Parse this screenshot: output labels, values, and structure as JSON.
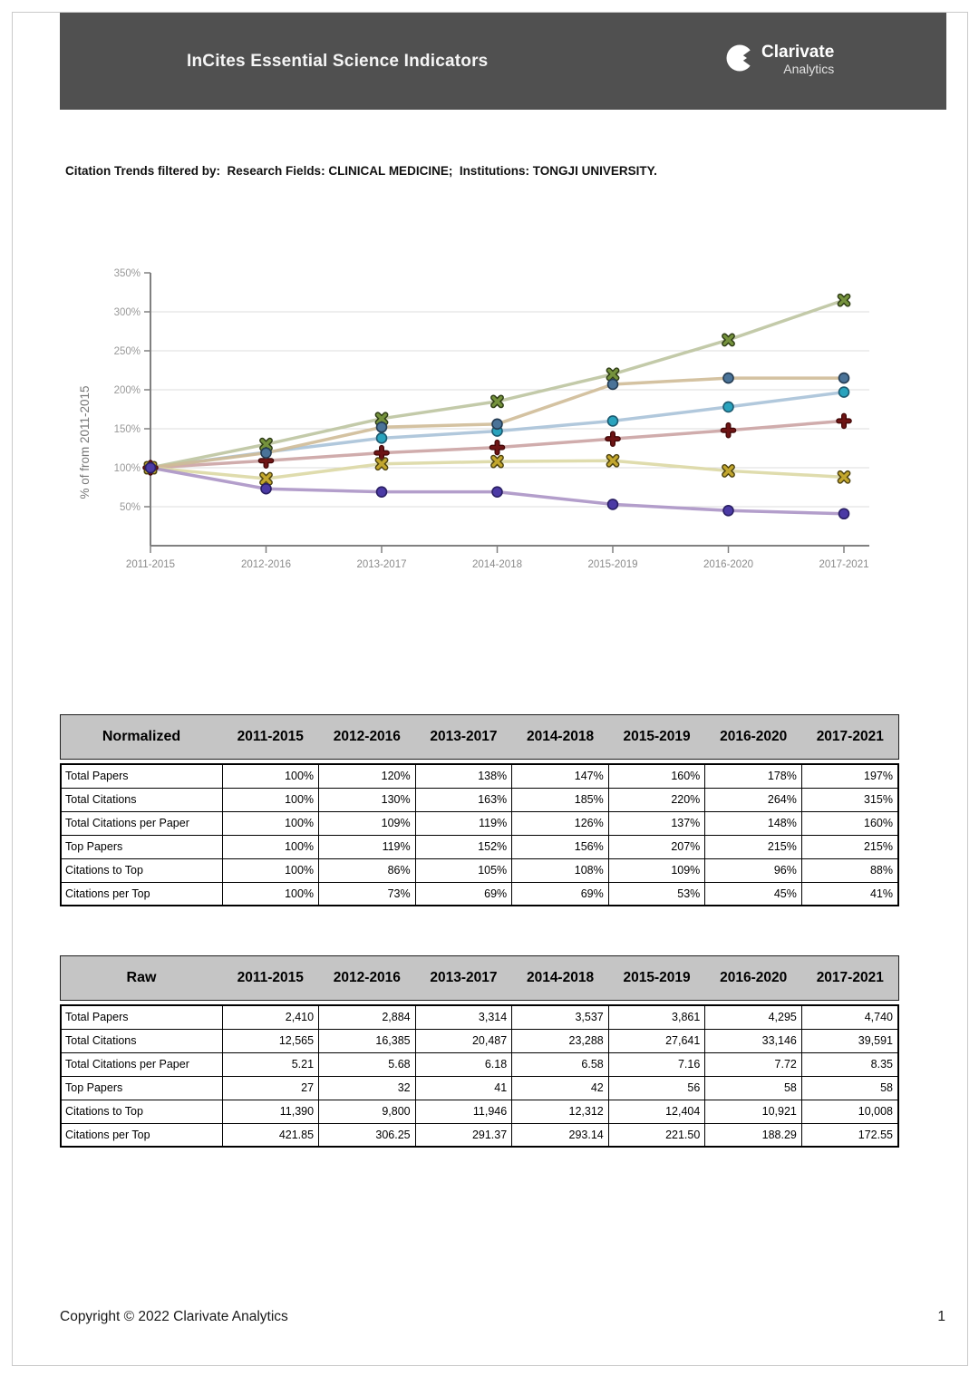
{
  "header": {
    "title": "InCites Essential Science Indicators",
    "brand": {
      "name": "Clarivate",
      "sub": "Analytics"
    }
  },
  "filter_line": "Citation Trends filtered by:  Research Fields: CLINICAL MEDICINE;  Institutions: TONGJI UNIVERSITY.",
  "chart_data": {
    "type": "line",
    "title": "",
    "xlabel": "",
    "ylabel": "% of from 2011-2015",
    "ylim": [
      0,
      350
    ],
    "ytick_step": 50,
    "ytick_suffix": "%",
    "grid": true,
    "legend": "none",
    "categories": [
      "2011-2015",
      "2012-2016",
      "2013-2017",
      "2014-2018",
      "2015-2019",
      "2016-2020",
      "2017-2021"
    ],
    "series": [
      {
        "name": "Total Papers",
        "values": [
          100,
          120,
          138,
          147,
          160,
          178,
          197
        ],
        "line_color": "#a9c2d8",
        "marker": "circle",
        "marker_color": "#2aa3bd",
        "marker_edge": "#1d5a70"
      },
      {
        "name": "Total Citations",
        "values": [
          100,
          130,
          163,
          185,
          220,
          264,
          315
        ],
        "line_color": "#bcc4a0",
        "marker": "x",
        "marker_color": "#75923d",
        "marker_edge": "#2f3d16"
      },
      {
        "name": "Total Citations per Paper",
        "values": [
          100,
          109,
          119,
          126,
          137,
          148,
          160
        ],
        "line_color": "#cba3a3",
        "marker": "plus",
        "marker_color": "#6d1414",
        "marker_edge": "#420808"
      },
      {
        "name": "Top Papers",
        "values": [
          100,
          119,
          152,
          156,
          207,
          215,
          215
        ],
        "line_color": "#cfbb97",
        "marker": "circle",
        "marker_color": "#4a7398",
        "marker_edge": "#253c52"
      },
      {
        "name": "Citations to Top",
        "values": [
          100,
          86,
          105,
          108,
          109,
          96,
          88
        ],
        "line_color": "#dcd8a4",
        "marker": "x",
        "marker_color": "#c2a62e",
        "marker_edge": "#4f4410"
      },
      {
        "name": "Citations per Top",
        "values": [
          100,
          73,
          69,
          69,
          53,
          45,
          41
        ],
        "line_color": "#ab93c5",
        "marker": "circle",
        "marker_color": "#4b3aa5",
        "marker_edge": "#2a1f63"
      }
    ]
  },
  "tables": {
    "normalized": {
      "title": "Normalized",
      "columns": [
        "2011-2015",
        "2012-2016",
        "2013-2017",
        "2014-2018",
        "2015-2019",
        "2016-2020",
        "2017-2021"
      ],
      "rows": [
        {
          "label": "Total Papers",
          "values": [
            "100%",
            "120%",
            "138%",
            "147%",
            "160%",
            "178%",
            "197%"
          ]
        },
        {
          "label": "Total Citations",
          "values": [
            "100%",
            "130%",
            "163%",
            "185%",
            "220%",
            "264%",
            "315%"
          ]
        },
        {
          "label": "Total Citations per Paper",
          "values": [
            "100%",
            "109%",
            "119%",
            "126%",
            "137%",
            "148%",
            "160%"
          ]
        },
        {
          "label": "Top Papers",
          "values": [
            "100%",
            "119%",
            "152%",
            "156%",
            "207%",
            "215%",
            "215%"
          ]
        },
        {
          "label": "Citations to Top",
          "values": [
            "100%",
            "86%",
            "105%",
            "108%",
            "109%",
            "96%",
            "88%"
          ]
        },
        {
          "label": "Citations per Top",
          "values": [
            "100%",
            "73%",
            "69%",
            "69%",
            "53%",
            "45%",
            "41%"
          ]
        }
      ]
    },
    "raw": {
      "title": "Raw",
      "columns": [
        "2011-2015",
        "2012-2016",
        "2013-2017",
        "2014-2018",
        "2015-2019",
        "2016-2020",
        "2017-2021"
      ],
      "rows": [
        {
          "label": "Total Papers",
          "values": [
            "2,410",
            "2,884",
            "3,314",
            "3,537",
            "3,861",
            "4,295",
            "4,740"
          ]
        },
        {
          "label": "Total Citations",
          "values": [
            "12,565",
            "16,385",
            "20,487",
            "23,288",
            "27,641",
            "33,146",
            "39,591"
          ]
        },
        {
          "label": "Total Citations per Paper",
          "values": [
            "5.21",
            "5.68",
            "6.18",
            "6.58",
            "7.16",
            "7.72",
            "8.35"
          ]
        },
        {
          "label": "Top Papers",
          "values": [
            "27",
            "32",
            "41",
            "42",
            "56",
            "58",
            "58"
          ]
        },
        {
          "label": "Citations to Top",
          "values": [
            "11,390",
            "9,800",
            "11,946",
            "12,312",
            "12,404",
            "10,921",
            "10,008"
          ]
        },
        {
          "label": "Citations per Top",
          "values": [
            "421.85",
            "306.25",
            "291.37",
            "293.14",
            "221.50",
            "188.29",
            "172.55"
          ]
        }
      ]
    }
  },
  "footer": {
    "copyright": "Copyright © 2022 Clarivate Analytics",
    "page": "1"
  }
}
